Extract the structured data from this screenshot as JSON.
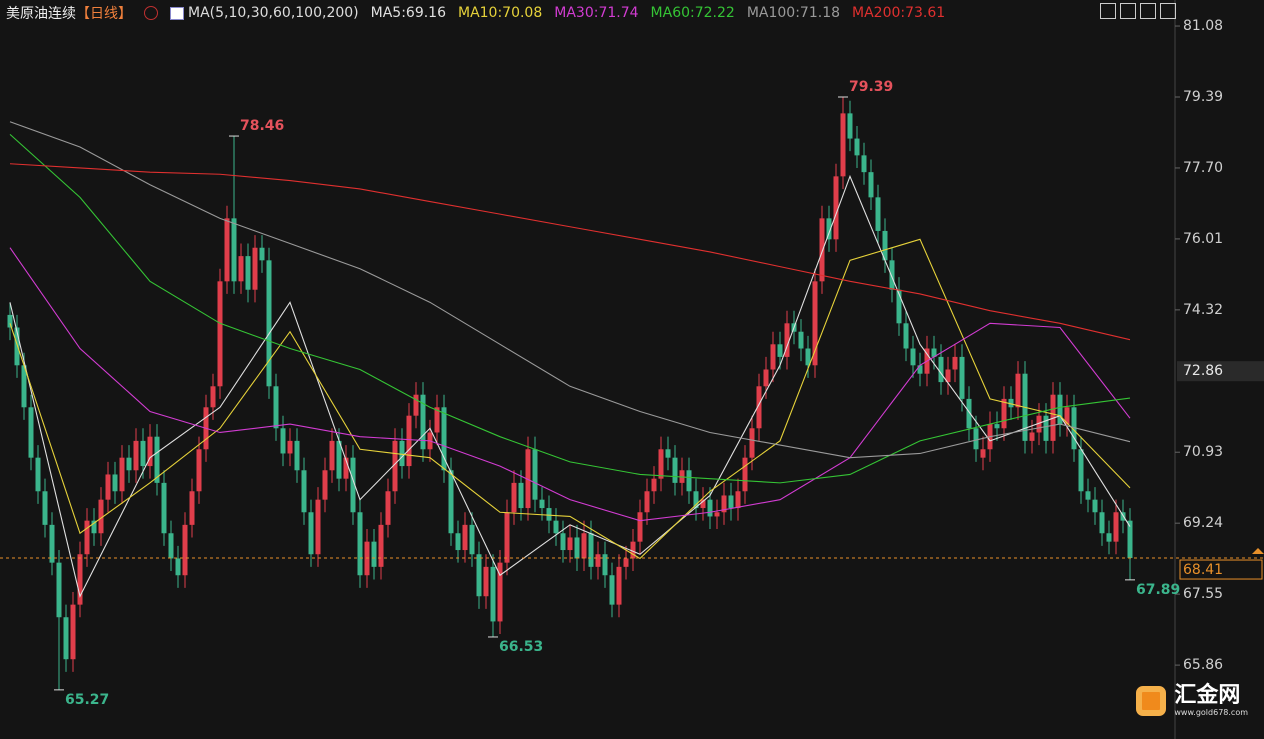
{
  "chart_data": {
    "type": "candlestick",
    "title": "美原油连续",
    "period": "【日线】",
    "indicator": "MA(5,10,30,60,100,200)",
    "up_color": "#e03e4b",
    "down_color": "#3bb58c",
    "ylim": [
      64.1,
      81.7
    ],
    "yticks": [
      {
        "value": 81.08,
        "label": "81.08"
      },
      {
        "value": 79.39,
        "label": "79.39"
      },
      {
        "value": 77.7,
        "label": "77.70"
      },
      {
        "value": 76.01,
        "label": "76.01"
      },
      {
        "value": 74.32,
        "label": "74.32"
      },
      {
        "value": 70.93,
        "label": "70.93"
      },
      {
        "value": 69.24,
        "label": "69.24"
      },
      {
        "value": 67.55,
        "label": "67.55"
      },
      {
        "value": 65.86,
        "label": "65.86"
      }
    ],
    "last_price": 68.41,
    "cursor_price": 72.86,
    "open": [
      74.2,
      73.9,
      73.0,
      72.0,
      70.8,
      70.0,
      69.2,
      68.3,
      67.0,
      66.0,
      67.3,
      68.5,
      69.3,
      69.0,
      69.8,
      70.4,
      70.0,
      70.8,
      70.5,
      71.2,
      70.6,
      71.3,
      70.2,
      69.0,
      68.4,
      68.0,
      69.2,
      70.0,
      71.0,
      72.0,
      72.5,
      75.0,
      76.5,
      75.0,
      75.6,
      74.8,
      75.8,
      75.5,
      72.5,
      71.5,
      70.9,
      71.2,
      70.5,
      69.5,
      68.5,
      69.8,
      70.5,
      71.2,
      70.3,
      70.8,
      69.5,
      68.0,
      68.8,
      68.2,
      69.2,
      70.0,
      71.2,
      70.6,
      71.8,
      72.3,
      71.0,
      71.4,
      72.0,
      70.5,
      69.0,
      68.6,
      69.2,
      68.5,
      67.5,
      68.2,
      66.9,
      68.3,
      69.5,
      70.2,
      69.6,
      71.0,
      69.8,
      69.6,
      69.3,
      69.0,
      68.6,
      68.9,
      68.4,
      69.0,
      68.2,
      68.5,
      68.0,
      67.3,
      68.2,
      68.4,
      68.8,
      69.5,
      70.0,
      70.3,
      71.0,
      70.8,
      70.2,
      70.5,
      70.0,
      69.6,
      69.8,
      69.4,
      69.5,
      69.9,
      69.6,
      70.0,
      70.8,
      71.5,
      72.5,
      72.9,
      73.5,
      73.2,
      74.0,
      73.8,
      73.4,
      73.0,
      75.0,
      76.5,
      76.0,
      77.5,
      79.0,
      78.4,
      78.0,
      77.6,
      77.0,
      76.2,
      75.5,
      74.8,
      74.0,
      73.4,
      73.0,
      72.8,
      73.4,
      73.2,
      72.6,
      72.9,
      73.2,
      72.2,
      71.5,
      70.8,
      71.0,
      71.6,
      71.5,
      72.2,
      72.0,
      72.8,
      71.2,
      71.4,
      71.8,
      71.2,
      72.3,
      71.6,
      72.0,
      71.0,
      70.0,
      69.8,
      69.5,
      69.0,
      68.8,
      69.5,
      69.3
    ],
    "high": [
      74.5,
      74.2,
      73.3,
      72.3,
      71.1,
      70.3,
      69.5,
      68.6,
      67.3,
      67.6,
      68.8,
      69.6,
      69.6,
      70.1,
      70.7,
      70.7,
      71.1,
      71.1,
      71.5,
      71.5,
      71.6,
      71.6,
      70.5,
      69.3,
      68.7,
      69.5,
      70.3,
      71.3,
      72.3,
      72.8,
      75.3,
      76.8,
      78.46,
      75.9,
      75.9,
      76.1,
      76.1,
      75.8,
      72.8,
      71.8,
      71.5,
      71.5,
      70.8,
      69.8,
      70.1,
      70.8,
      71.5,
      71.5,
      71.1,
      71.1,
      69.8,
      69.1,
      69.1,
      69.5,
      70.3,
      71.5,
      71.5,
      72.1,
      72.6,
      72.6,
      71.7,
      72.3,
      72.3,
      70.8,
      69.3,
      69.5,
      69.5,
      68.8,
      68.5,
      68.5,
      68.6,
      69.8,
      70.5,
      70.5,
      71.3,
      71.3,
      70.1,
      69.9,
      69.6,
      69.3,
      69.2,
      69.2,
      69.3,
      69.3,
      68.8,
      68.8,
      68.3,
      68.5,
      68.7,
      69.1,
      69.8,
      70.3,
      70.6,
      71.3,
      71.3,
      71.1,
      70.8,
      70.8,
      70.3,
      70.1,
      70.1,
      69.8,
      70.2,
      70.2,
      70.3,
      71.1,
      71.8,
      72.8,
      73.2,
      73.8,
      73.8,
      74.3,
      74.3,
      74.1,
      73.7,
      75.3,
      76.8,
      76.8,
      77.8,
      79.39,
      79.3,
      78.7,
      78.3,
      77.9,
      77.3,
      76.5,
      75.8,
      75.1,
      74.3,
      73.7,
      73.3,
      73.7,
      73.7,
      73.5,
      73.2,
      73.5,
      73.5,
      72.5,
      71.8,
      71.3,
      71.9,
      71.9,
      72.5,
      72.5,
      73.1,
      73.1,
      71.7,
      72.1,
      72.1,
      72.6,
      72.6,
      72.3,
      72.3,
      71.3,
      70.3,
      70.1,
      69.8,
      69.3,
      69.8,
      69.8,
      69.6
    ],
    "low": [
      73.6,
      72.7,
      71.7,
      70.5,
      69.7,
      68.9,
      68.0,
      65.27,
      65.7,
      65.7,
      67.0,
      68.2,
      68.7,
      68.7,
      69.5,
      69.7,
      69.7,
      70.2,
      70.2,
      70.3,
      70.3,
      69.9,
      68.7,
      68.1,
      67.7,
      67.7,
      68.9,
      69.7,
      70.7,
      71.7,
      72.2,
      74.7,
      74.7,
      74.7,
      74.5,
      74.5,
      75.2,
      72.2,
      71.2,
      70.6,
      70.6,
      70.2,
      69.2,
      68.2,
      68.2,
      69.5,
      70.2,
      70.0,
      70.0,
      69.2,
      67.7,
      67.7,
      67.9,
      67.9,
      68.9,
      69.7,
      70.3,
      70.3,
      71.5,
      70.7,
      70.7,
      71.1,
      70.2,
      68.7,
      68.3,
      68.3,
      68.2,
      67.2,
      67.2,
      66.53,
      66.6,
      68.0,
      69.2,
      69.3,
      69.3,
      69.5,
      69.3,
      69.0,
      68.7,
      68.3,
      68.3,
      68.1,
      68.1,
      67.9,
      67.9,
      67.7,
      67.0,
      67.0,
      67.9,
      68.1,
      68.5,
      69.2,
      69.7,
      70.0,
      70.5,
      69.9,
      69.9,
      69.7,
      69.3,
      69.3,
      69.1,
      69.1,
      69.2,
      69.3,
      69.3,
      69.7,
      70.5,
      71.2,
      72.2,
      72.6,
      72.9,
      72.9,
      73.5,
      73.1,
      72.7,
      72.7,
      74.7,
      75.7,
      75.7,
      77.2,
      78.1,
      77.7,
      77.3,
      76.7,
      75.9,
      75.2,
      74.5,
      73.7,
      73.1,
      72.7,
      72.5,
      72.5,
      72.9,
      72.3,
      72.3,
      72.6,
      71.9,
      71.2,
      70.7,
      70.5,
      70.7,
      71.2,
      71.2,
      71.7,
      71.7,
      70.9,
      70.9,
      71.1,
      70.9,
      70.9,
      71.3,
      71.3,
      70.7,
      69.7,
      69.5,
      69.2,
      68.7,
      68.5,
      68.5,
      69.0,
      67.89
    ],
    "close": [
      73.9,
      73.0,
      72.0,
      70.8,
      70.0,
      69.2,
      68.3,
      67.0,
      66.0,
      67.3,
      68.5,
      69.3,
      69.0,
      69.8,
      70.4,
      70.0,
      70.8,
      70.5,
      71.2,
      70.6,
      71.3,
      70.2,
      69.0,
      68.4,
      68.0,
      69.2,
      70.0,
      71.0,
      72.0,
      72.5,
      75.0,
      76.5,
      75.0,
      75.6,
      74.8,
      75.8,
      75.5,
      72.5,
      71.5,
      70.9,
      71.2,
      70.5,
      69.5,
      68.5,
      69.8,
      70.5,
      71.2,
      70.3,
      70.8,
      69.5,
      68.0,
      68.8,
      68.2,
      69.2,
      70.0,
      71.2,
      70.6,
      71.8,
      72.3,
      71.0,
      71.4,
      72.0,
      70.5,
      69.0,
      68.6,
      69.2,
      68.5,
      67.5,
      68.2,
      66.9,
      68.3,
      69.5,
      70.2,
      69.6,
      71.0,
      69.8,
      69.6,
      69.3,
      69.0,
      68.6,
      68.9,
      68.4,
      69.0,
      68.2,
      68.5,
      68.0,
      67.3,
      68.2,
      68.4,
      68.8,
      69.5,
      70.0,
      70.3,
      71.0,
      70.8,
      70.2,
      70.5,
      70.0,
      69.6,
      69.8,
      69.4,
      69.5,
      69.9,
      69.6,
      70.0,
      70.8,
      71.5,
      72.5,
      72.9,
      73.5,
      73.2,
      74.0,
      73.8,
      73.4,
      73.0,
      75.0,
      76.5,
      76.0,
      77.5,
      79.0,
      78.4,
      78.0,
      77.6,
      77.0,
      76.2,
      75.5,
      74.8,
      74.0,
      73.4,
      73.0,
      72.8,
      73.4,
      73.2,
      72.6,
      72.9,
      73.2,
      72.2,
      71.5,
      71.0,
      71.0,
      71.6,
      71.5,
      72.2,
      72.0,
      72.8,
      71.2,
      71.4,
      71.8,
      71.2,
      72.3,
      71.6,
      72.0,
      71.0,
      70.0,
      69.8,
      69.5,
      69.0,
      68.8,
      69.5,
      69.3,
      68.41
    ],
    "ma_x": [
      0,
      10,
      20,
      30,
      40,
      50,
      60,
      70,
      80,
      90,
      100,
      110,
      120,
      130,
      140,
      150,
      160
    ],
    "series": [
      {
        "name": "MA5:69.16",
        "color": "#e0e0e0",
        "values": [
          74.5,
          67.5,
          70.8,
          72.0,
          74.5,
          69.8,
          71.5,
          68.0,
          69.2,
          68.5,
          69.9,
          73.0,
          77.5,
          73.5,
          71.2,
          71.8,
          69.16
        ]
      },
      {
        "name": "MA10:70.08",
        "color": "#e6d23a",
        "values": [
          74.0,
          69.0,
          70.2,
          71.5,
          73.8,
          71.0,
          70.8,
          69.5,
          69.4,
          68.4,
          70.0,
          71.2,
          75.5,
          76.0,
          72.2,
          71.8,
          70.08
        ]
      },
      {
        "name": "MA30:71.74",
        "color": "#d23cd2",
        "values": [
          75.8,
          73.4,
          71.9,
          71.4,
          71.6,
          71.3,
          71.2,
          70.6,
          69.8,
          69.3,
          69.5,
          69.8,
          70.8,
          73.0,
          74.0,
          73.9,
          71.74
        ]
      },
      {
        "name": "MA60:72.22",
        "color": "#35c435",
        "values": [
          78.5,
          77.0,
          75.0,
          74.0,
          73.4,
          72.9,
          72.0,
          71.3,
          70.7,
          70.4,
          70.3,
          70.2,
          70.4,
          71.2,
          71.6,
          72.0,
          72.22
        ]
      },
      {
        "name": "MA100:71.18",
        "color": "#9a9a9a",
        "values": [
          78.8,
          78.2,
          77.3,
          76.5,
          75.9,
          75.3,
          74.5,
          73.5,
          72.5,
          71.9,
          71.4,
          71.1,
          70.8,
          70.9,
          71.3,
          71.6,
          71.18
        ]
      },
      {
        "name": "MA200:73.61",
        "color": "#e0302f",
        "values": [
          77.8,
          77.7,
          77.6,
          77.55,
          77.4,
          77.2,
          76.9,
          76.6,
          76.3,
          76.0,
          75.7,
          75.35,
          75.0,
          74.7,
          74.3,
          74.0,
          73.61
        ]
      }
    ],
    "extremes": [
      {
        "x": 7,
        "value": 65.27,
        "color": "#3bb58c",
        "side": "below"
      },
      {
        "x": 32,
        "value": 78.46,
        "color": "#e5525c",
        "side": "above"
      },
      {
        "x": 69,
        "value": 66.53,
        "color": "#3bb58c",
        "side": "below"
      },
      {
        "x": 119,
        "value": 79.39,
        "color": "#e5525c",
        "side": "above"
      },
      {
        "x": 160,
        "value": 67.89,
        "color": "#3bb58c",
        "side": "below"
      }
    ]
  },
  "watermark": {
    "name": "汇金网",
    "url": "www.gold678.com"
  }
}
